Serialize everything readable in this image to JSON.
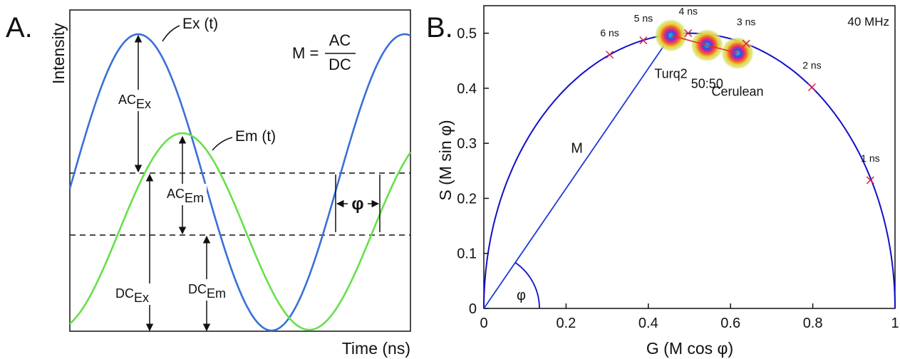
{
  "panels": {
    "a_label": "A.",
    "b_label": "B."
  },
  "chart_data": [
    {
      "type": "line",
      "panel": "A",
      "xlabel": "Time (ns)",
      "ylabel": "Intensity",
      "formula": {
        "lhs": "M =",
        "numerator": "AC",
        "denominator": "DC"
      },
      "series": [
        {
          "name": "Ex (t)",
          "color": "#3a6fd8"
        },
        {
          "name": "Em (t)",
          "color": "#66e04a"
        }
      ],
      "annotations": {
        "ac_ex": {
          "base": "AC",
          "sub": "Ex"
        },
        "ac_em": {
          "base": "AC",
          "sub": "Em"
        },
        "dc_ex": {
          "base": "DC",
          "sub": "Ex"
        },
        "dc_em": {
          "base": "DC",
          "sub": "Em"
        },
        "phase": "φ"
      }
    },
    {
      "type": "scatter",
      "panel": "B",
      "title": "40 MHz",
      "xlabel": "G (M cos φ)",
      "ylabel": "S (M sin φ)",
      "xlim": [
        0,
        1
      ],
      "ylim": [
        0,
        0.55
      ],
      "xticks": [
        {
          "value": 0,
          "label": "0"
        },
        {
          "value": 0.2,
          "label": "0.2"
        },
        {
          "value": 0.4,
          "label": "0.4"
        },
        {
          "value": 0.6,
          "label": "0.6"
        },
        {
          "value": 0.8,
          "label": "0.8"
        },
        {
          "value": 1,
          "label": "1"
        }
      ],
      "yticks": [
        {
          "value": 0,
          "label": "0"
        },
        {
          "value": 0.1,
          "label": "0.1"
        },
        {
          "value": 0.2,
          "label": "0.2"
        },
        {
          "value": 0.3,
          "label": "0.3"
        },
        {
          "value": 0.4,
          "label": "0.4"
        },
        {
          "value": 0.5,
          "label": "0.5"
        }
      ],
      "curve": "universal semicircle",
      "lifetime_markers": [
        {
          "label": "1 ns",
          "g": 0.94,
          "s": 0.233
        },
        {
          "label": "2 ns",
          "g": 0.798,
          "s": 0.402
        },
        {
          "label": "3 ns",
          "g": 0.638,
          "s": 0.481
        },
        {
          "label": "4 ns",
          "g": 0.497,
          "s": 0.5
        },
        {
          "label": "5 ns",
          "g": 0.388,
          "s": 0.487
        },
        {
          "label": "6 ns",
          "g": 0.306,
          "s": 0.461
        }
      ],
      "clusters": [
        {
          "label": "Turq2",
          "g": 0.455,
          "s": 0.496
        },
        {
          "label": "50:50",
          "g": 0.543,
          "s": 0.478
        },
        {
          "label": "Cerulean",
          "g": 0.617,
          "s": 0.464
        }
      ],
      "vector_label": "M",
      "angle_label": "φ",
      "colors": {
        "curve": "#1010c8",
        "marker": "#e0204a",
        "line": "#e03030"
      }
    }
  ]
}
